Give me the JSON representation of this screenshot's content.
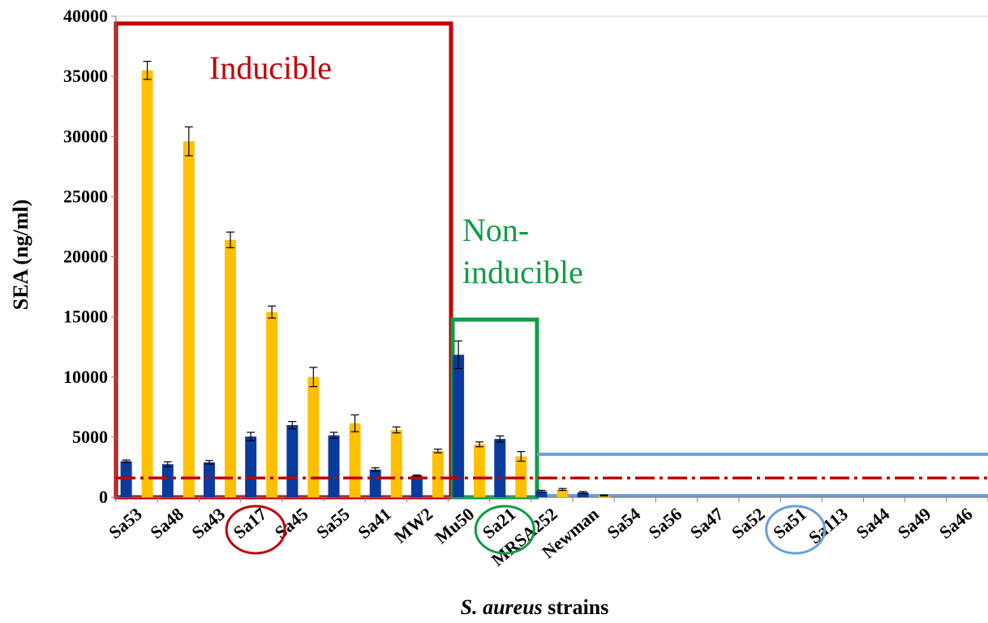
{
  "chart_data": {
    "type": "bar",
    "xlabel_italic": "S. aureus",
    "xlabel_rest": " strains",
    "ylabel": "SEA (ng/ml)",
    "ylim": [
      0,
      40000
    ],
    "yticks": [
      0,
      5000,
      10000,
      15000,
      20000,
      25000,
      30000,
      35000,
      40000
    ],
    "grid": false,
    "categories": [
      "Sa53",
      "Sa48",
      "Sa43",
      "Sa17",
      "Sa45",
      "Sa55",
      "Sa41",
      "MW2",
      "Mu50",
      "Sa21",
      "MRSA252",
      "Newman",
      "Sa54",
      "Sa56",
      "Sa47",
      "Sa52",
      "Sa51",
      "Sa113",
      "Sa44",
      "Sa49",
      "Sa46"
    ],
    "series": [
      {
        "color": "#0a3a9c",
        "values": [
          3000,
          2750,
          2900,
          5050,
          6000,
          5150,
          2300,
          1800,
          11850,
          4850,
          500,
          400,
          0,
          0,
          0,
          0,
          0,
          0,
          0,
          0,
          0
        ],
        "errors": [
          100,
          200,
          150,
          350,
          300,
          250,
          150,
          50,
          1150,
          250,
          80,
          80,
          0,
          0,
          0,
          0,
          0,
          0,
          0,
          0,
          0
        ]
      },
      {
        "color": "#ffc000",
        "values": [
          35500,
          29600,
          21400,
          15400,
          10000,
          6150,
          5600,
          3850,
          4400,
          3400,
          650,
          150,
          0,
          0,
          0,
          0,
          0,
          0,
          0,
          0,
          0
        ],
        "errors": [
          750,
          1200,
          650,
          500,
          800,
          700,
          250,
          150,
          200,
          400,
          80,
          40,
          0,
          0,
          0,
          0,
          0,
          0,
          0,
          0,
          0
        ]
      }
    ],
    "threshold_line": {
      "value": 1600,
      "color": "#c00000",
      "style": "dash-dot"
    },
    "annotations": [
      {
        "text": "Inducible",
        "color": "#c00000"
      },
      {
        "text_lines": [
          "Non-",
          "inducible"
        ],
        "color": "#109c45"
      }
    ],
    "group_colors": {
      "inducible": "#c00000",
      "non_inducible": "#109c45",
      "low": "#6aa0d8"
    },
    "highlighted_categories": {
      "inducible": "Sa17",
      "non_inducible": "Sa21",
      "low": "Sa51"
    }
  }
}
